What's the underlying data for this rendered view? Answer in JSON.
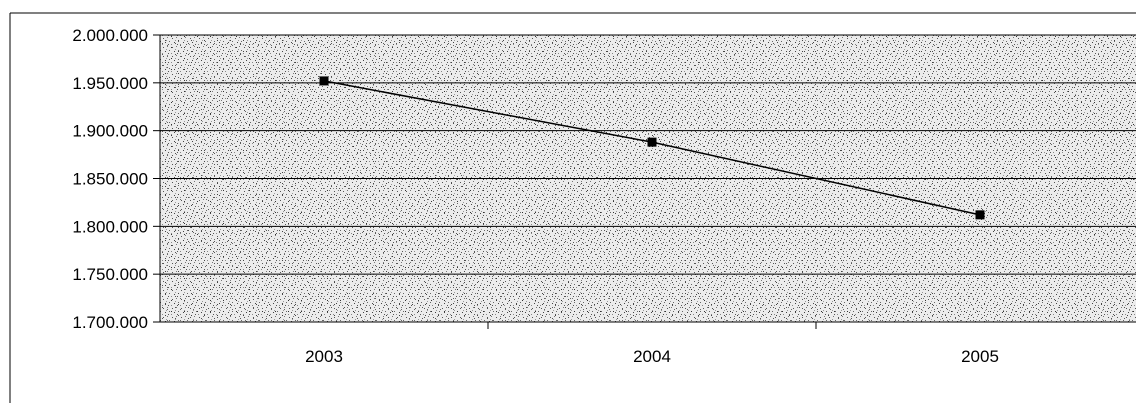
{
  "chart_data": {
    "type": "line",
    "categories": [
      "2003",
      "2004",
      "2005"
    ],
    "series": [
      {
        "values": [
          1952000,
          1888000,
          1812000
        ]
      }
    ],
    "ylim": [
      1700000,
      2000000
    ],
    "yticks": [
      {
        "value": 2000000,
        "label": "2.000.000"
      },
      {
        "value": 1950000,
        "label": "1.950.000"
      },
      {
        "value": 1900000,
        "label": "1.900.000"
      },
      {
        "value": 1850000,
        "label": "1.850.000"
      },
      {
        "value": 1800000,
        "label": "1.800.000"
      },
      {
        "value": 1750000,
        "label": "1.750.000"
      },
      {
        "value": 1700000,
        "label": "1.700.000"
      }
    ],
    "grid": true,
    "legend": "none",
    "colors": {
      "line": "#000000",
      "marker": "#000000",
      "plot_background": "#dcdcdc"
    }
  }
}
